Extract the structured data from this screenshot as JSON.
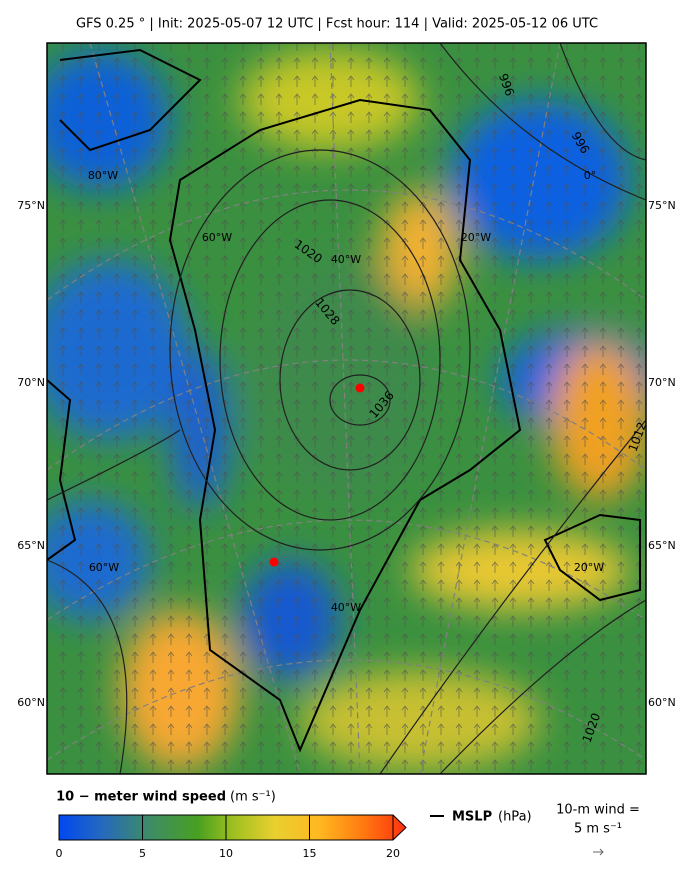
{
  "header": {
    "title": "GFS 0.25 °  |  Init: 2025-05-07 12 UTC  |  Fcst hour: 114  |  Valid: 2025-05-12 06 UTC"
  },
  "map": {
    "lat_labels_left": [
      "75°N",
      "70°N",
      "65°N",
      "60°N"
    ],
    "lat_labels_right": [
      "75°N",
      "70°N",
      "65°N",
      "60°N"
    ],
    "lon_labels": [
      "80°W",
      "60°W",
      "40°W",
      "20°W",
      "0°",
      "60°W",
      "40°W",
      "20°W"
    ],
    "contour_labels": [
      "996",
      "996",
      "1020",
      "1028",
      "1036",
      "1012",
      "1020"
    ]
  },
  "colorbar": {
    "title_bold": "10 − meter wind speed",
    "title_unit": "(m s⁻¹)",
    "lim": [
      0,
      20
    ],
    "ticks": [
      0,
      5,
      10,
      15,
      20
    ]
  },
  "legend": {
    "mslp_bold": "MSLP",
    "mslp_unit": "(hPa)",
    "wind_title": "10-m wind =",
    "wind_value": "5 m s⁻¹"
  }
}
